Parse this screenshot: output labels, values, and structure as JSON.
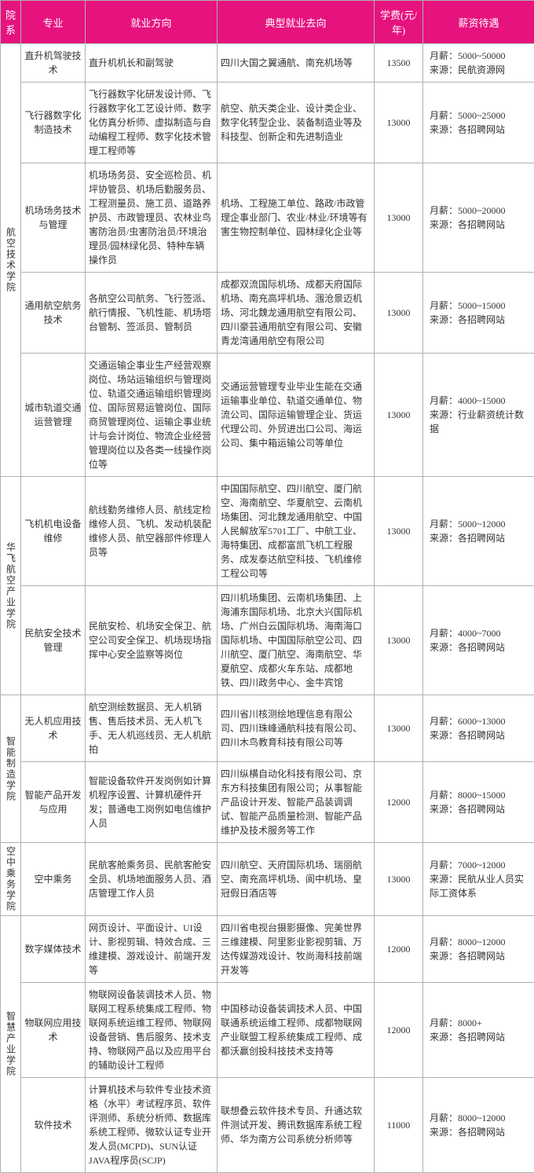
{
  "header": {
    "department": "院系",
    "major": "专业",
    "direction": "就业方向",
    "destination": "典型就业去向",
    "fee": "学费(元/年)",
    "salary": "薪资待遇"
  },
  "rows": [
    {
      "dept": "航空技术学院",
      "deptRowspan": 5,
      "major": "直升机驾驶技术",
      "direction": "直升机机长和副驾驶",
      "destination": "四川大国之翼通航、南充机场等",
      "fee": "13500",
      "salary": "月薪：5000~50000\n来源：民航资源网"
    },
    {
      "major": "飞行器数字化制造技术",
      "direction": "飞行器数字化研发设计师、飞行器数字化工艺设计师、数字化仿真分析师、虚拟制造与自动编程工程师、数字化技术管理工程师等",
      "destination": "航空、航天类企业、设计类企业、数字化转型企业、装备制造业等及科技型、创新企和先进制造业",
      "fee": "13000",
      "salary": "月薪：5000~25000\n来源：各招聘网站"
    },
    {
      "major": "机场场务技术与管理",
      "direction": "机场场务员、安全巡检员、机坪协管员、机场后勤服务员、工程测量员、施工员、道路养护员、市政管理员、农林业鸟害防治员/虫害防治员/环境治理员/园林绿化员、特种车辆操作员",
      "destination": "机场、工程施工单位、路政/市政管理企事业部门、农业/林业/环境等有害生物控制单位、园林绿化企业等",
      "fee": "13000",
      "salary": "月薪：5000~20000\n来源：各招聘网站"
    },
    {
      "major": "通用航空航务技术",
      "direction": "各航空公司航务、飞行签派、航行情报、飞机性能、机场塔台管制、签派员、管制员",
      "destination": "成都双流国际机场、成都天府国际机场、南充高坪机场、涠沧景迈机场、河北魏龙通用航空有限公司、四川豪芸通用航空有限公司、安徽青龙湾通用航空有限公司",
      "fee": "13000",
      "salary": "月薪：5000~15000\n来源：各招聘网站"
    },
    {
      "major": "城市轨道交通运营管理",
      "direction": "交通运输企事业生产经营观察岗位、场站运输组织与管理岗位、轨道交通运输组织管理岗位、国际贸易运管岗位、国际商贸管理岗位、运输企事业统计与会计岗位、物流企业经营管理岗位以及各类一线操作岗位等",
      "destination": "交通运营管理专业毕业生能在交通运输事业单位、轨道交通单位、物流公司、国际运输管理企业、货运代理公司、外贸进出口公司、海运公司、集中箱运输公司等单位",
      "fee": "13000",
      "salary": "月薪：4000~15000\n来源：行业薪资统计数据"
    },
    {
      "dept": "华飞航空产业学院",
      "deptRowspan": 2,
      "major": "飞机机电设备维修",
      "direction": "航线勤务维修人员、航线定检维修人员、飞机、发动机装配维修人员、航空器部件修理人员等",
      "destination": "中国国际航空、四川航空、厦门航空、海南航空、华夏航空、云南机场集团、河北魏龙通用航空、中国人民解放军5701工厂、中航工业、海特集团、成都富凯飞机工程服务、成发泰达航空科技、飞机维修工程公司等",
      "fee": "13000",
      "salary": "月薪：5000~12000\n来源：各招聘网站"
    },
    {
      "major": "民航安全技术管理",
      "direction": "民航安检、机场安全保卫、航空公司安全保卫、机场现场指挥中心安全监察等岗位",
      "destination": "四川机场集团、云南机场集团、上海浦东国际机场、北京大兴国际机场、广州白云国际机场、海南海口国际机场、中国国际航空公司、四川航空、厦门航空、海南航空、华夏航空、成都火车东站、成都地铁、四川政务中心、金牛宾馆",
      "fee": "13000",
      "salary": "月薪：4000~7000\n来源：各招聘网站"
    },
    {
      "dept": "智能制造学院",
      "deptRowspan": 2,
      "major": "无人机应用技术",
      "direction": "航空测绘数据员、无人机销售、售后技术员、无人机飞手、无人机巡线员、无人机航拍",
      "destination": "四川省川核测绘地理信息有限公司、四川珠峰通航科技有限公司、四川木鸟教育科技有限公司等",
      "fee": "13000",
      "salary": "月薪：6000~13000\n来源：各招聘网站"
    },
    {
      "major": "智能产品开发与应用",
      "direction": "智能设备软件开发岗例如计算机程序设置、计算机硬件开发；普通电工岗例如电信维护人员",
      "destination": "四川纵横自动化科技有限公司、京东方科技集团有限公司；从事智能产品设计开发、智能产品装调调试、智能产品质量检测、智能产品维护及技术服务等工作",
      "fee": "12000",
      "salary": "月薪：8000~15000\n来源：各招聘网站"
    },
    {
      "dept": "空中乘务学院",
      "deptRowspan": 1,
      "major": "空中乘务",
      "direction": "民航客舱乘务员、民航客舱安全员、机场地面服务人员、酒店管理工作人员",
      "destination": "四川航空、天府国际机场、瑞丽航空、南充高坪机场、阆中机场、皇冠假日酒店等",
      "fee": "13000",
      "salary": "月薪：7000~12000\n来源：民航从业人员实际工资体系"
    },
    {
      "dept": "智慧产业学院",
      "deptRowspan": 3,
      "major": "数字媒体技术",
      "direction": "网页设计、平面设计、UI设计、影视剪辑、特效合成、三维建模、游戏设计、前端开发等",
      "destination": "四川省电视台摄影摄像、完美世界三维建模、阿里影业影视剪辑、万达传媒游戏设计、牧尚海科技前端开发等",
      "fee": "12000",
      "salary": "月薪：8000~12000\n来源：各招聘网站"
    },
    {
      "major": "物联网应用技术",
      "direction": "物联网设备装调技术人员、物联网工程系统集成工程师、物联网系统运维工程师、物联网设备营销、售后服务、技术支持、物联网产品以及应用平台的辅助设计工程师",
      "destination": "中国移动设备装调技术人员、中国联通系统运维工程师、成都物联网产业联盟工程系统集成工程师、成都沃赢创投科技技术支持等",
      "fee": "12000",
      "salary": "月薪：8000+\n来源：各招聘网站"
    },
    {
      "major": "软件技术",
      "direction": "计算机技术与软件专业技术资格（水平）考试程序员、软件评测师、系统分析师、数据库系统工程师、微软认证专业开发人员(MCPD)、SUN认证JAVA程序员(SCJP)",
      "destination": "联想叠云软件技术专员、升通达软件测试开发、腾讯数据库系统工程师、华为南方公司系统分析师等",
      "fee": "11000",
      "salary": "月薪：8000~12000\n来源：各招聘网站"
    }
  ]
}
